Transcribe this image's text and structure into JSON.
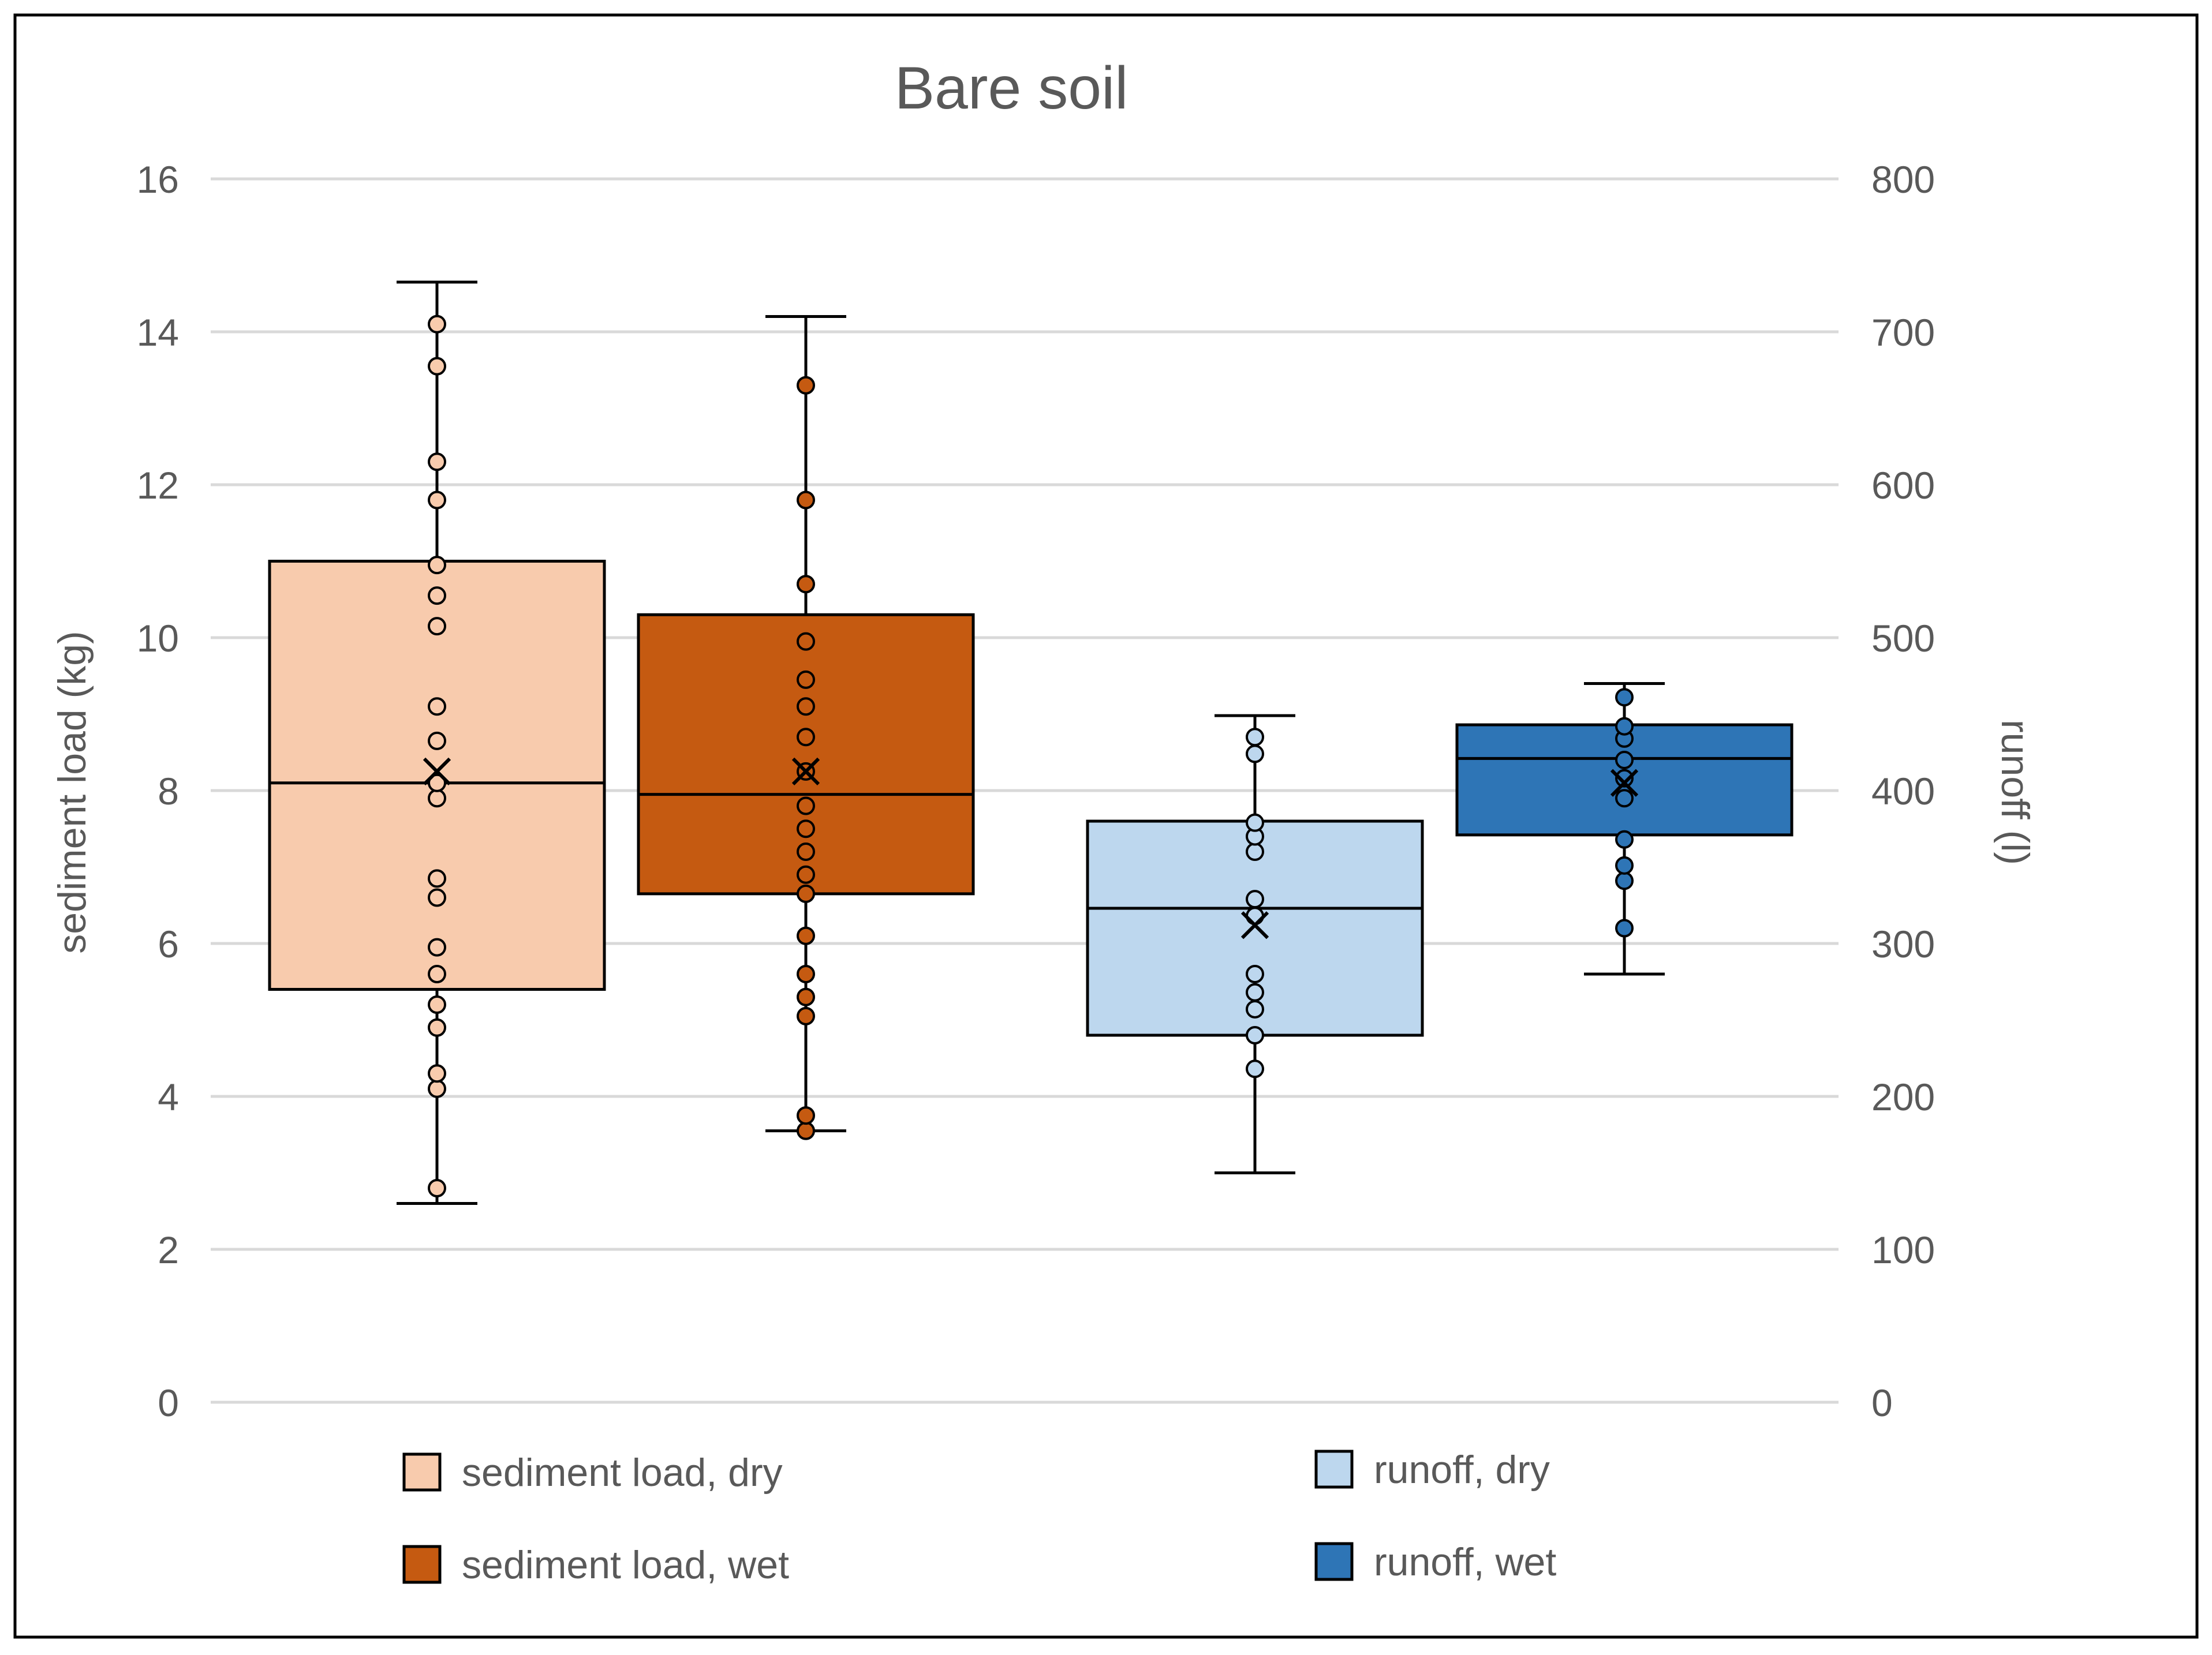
{
  "chart_data": {
    "type": "box",
    "title": "Bare soil",
    "ylabel_left": "sediment load (kg)",
    "ylabel_right": "runoff (l)",
    "ylim_left": [
      0,
      16
    ],
    "ylim_right": [
      0,
      800
    ],
    "yticks_left": [
      "0",
      "2",
      "4",
      "6",
      "8",
      "10",
      "12",
      "14",
      "16"
    ],
    "yticks_right": [
      "0",
      "100",
      "200",
      "300",
      "400",
      "500",
      "600",
      "700",
      "800"
    ],
    "grid": true,
    "legend_position": "bottom",
    "series": [
      {
        "name": "sediment load, dry",
        "axis": "left",
        "color": "#F8CBAD",
        "whisker_low": 2.6,
        "q1": 5.4,
        "median": 8.1,
        "q3": 11.0,
        "whisker_high": 14.65,
        "mean": 8.25,
        "points": [
          2.8,
          4.1,
          4.3,
          4.9,
          5.2,
          5.6,
          5.95,
          6.6,
          6.85,
          7.9,
          8.1,
          8.65,
          9.1,
          10.15,
          10.55,
          10.95,
          11.8,
          12.3,
          13.55,
          14.1
        ]
      },
      {
        "name": "sediment load, wet",
        "axis": "left",
        "color": "#C55A11",
        "whisker_low": 3.55,
        "q1": 6.65,
        "median": 7.95,
        "q3": 10.3,
        "whisker_high": 14.2,
        "mean": 8.25,
        "points": [
          3.55,
          3.75,
          5.05,
          5.3,
          5.6,
          6.1,
          6.65,
          6.9,
          7.2,
          7.5,
          7.8,
          8.25,
          8.7,
          9.1,
          9.45,
          9.95,
          10.7,
          11.8,
          13.3
        ]
      },
      {
        "name": "runoff, dry",
        "axis": "right",
        "color": "#BDD7EE",
        "whisker_low": 150,
        "q1": 240,
        "median": 323,
        "q3": 380,
        "whisker_high": 449,
        "mean": 312,
        "points": [
          218,
          240,
          257,
          268,
          280,
          318,
          329,
          360,
          370,
          379,
          424,
          435
        ]
      },
      {
        "name": "runoff, wet",
        "axis": "right",
        "color": "#2E75B6",
        "whisker_low": 280,
        "q1": 371,
        "median": 421,
        "q3": 443,
        "whisker_high": 470,
        "mean": 405,
        "points": [
          310,
          341,
          351,
          368,
          395,
          408,
          420,
          434,
          442,
          461
        ]
      }
    ]
  }
}
